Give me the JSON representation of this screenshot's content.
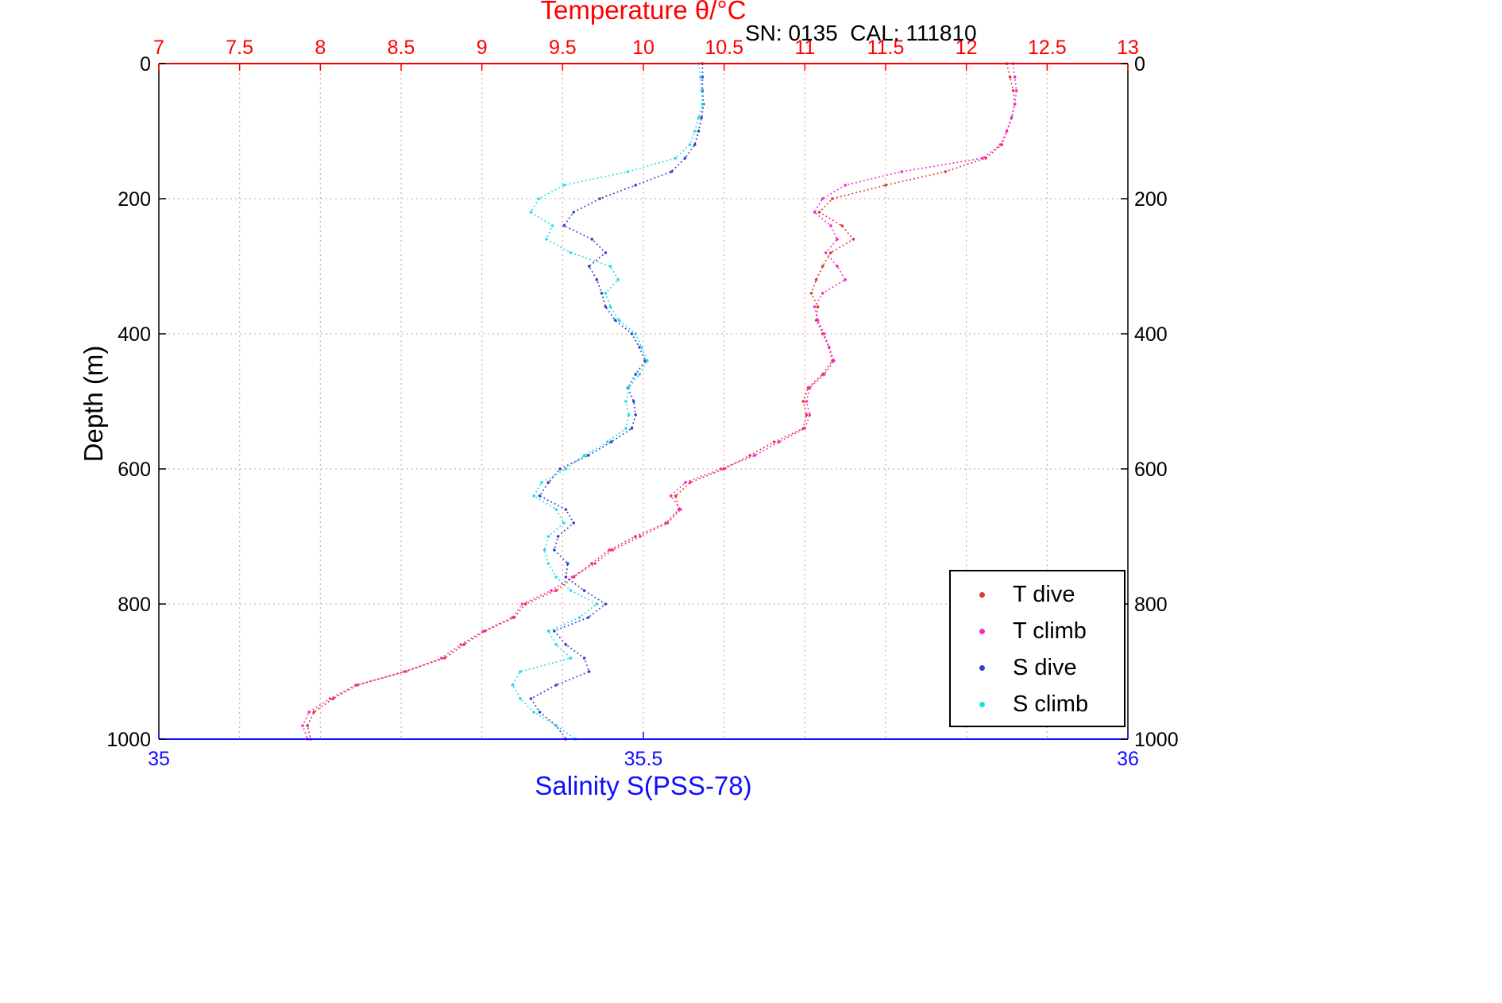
{
  "titles": {
    "temperature": "Temperature θ/°C",
    "serial_cal": "SN: 0135  CAL: 111810",
    "salinity": "Salinity S(PSS-78)",
    "depth": "Depth (m)"
  },
  "axes": {
    "temperature": {
      "min": 7,
      "max": 13,
      "ticks": [
        7,
        7.5,
        8,
        8.5,
        9,
        9.5,
        10,
        10.5,
        11,
        11.5,
        12,
        12.5,
        13
      ],
      "color": "#ff0000"
    },
    "salinity": {
      "min": 35,
      "max": 36,
      "ticks": [
        35,
        35.5,
        36
      ],
      "color": "#0f0fff"
    },
    "depth": {
      "min": 0,
      "max": 1000,
      "ticks": [
        0,
        200,
        400,
        600,
        800,
        1000
      ],
      "color": "#000000"
    }
  },
  "grid": {
    "vertical_color": "#e9a4a4",
    "horizontal_color": "#d8b0b0"
  },
  "legend": {
    "items": [
      {
        "label": "T dive",
        "color": "#e0382c"
      },
      {
        "label": "T climb",
        "color": "#f728c9"
      },
      {
        "label": "S dive",
        "color": "#3340cf"
      },
      {
        "label": "S climb",
        "color": "#1cdfe4"
      }
    ]
  },
  "chart_data": {
    "type": "scatter",
    "title": "Temperature θ/°C",
    "subtitle": "SN: 0135  CAL: 111810",
    "x_top_label": "Temperature θ/°C",
    "x_top_range": [
      7,
      13
    ],
    "x_bottom_label": "Salinity S(PSS-78)",
    "x_bottom_range": [
      35,
      36
    ],
    "ylabel": "Depth (m)",
    "y_range": [
      0,
      1000
    ],
    "y_inverted": true,
    "grid": true,
    "linestyle": "dotted",
    "marker": "point",
    "legend_position": "lower right",
    "series": [
      {
        "name": "T dive",
        "axis": "temperature",
        "color": "#e0382c",
        "points": [
          [
            0,
            12.25
          ],
          [
            20,
            12.27
          ],
          [
            40,
            12.29
          ],
          [
            60,
            12.3
          ],
          [
            80,
            12.28
          ],
          [
            100,
            12.25
          ],
          [
            120,
            12.22
          ],
          [
            140,
            12.12
          ],
          [
            160,
            11.87
          ],
          [
            180,
            11.5
          ],
          [
            200,
            11.17
          ],
          [
            220,
            11.09
          ],
          [
            240,
            11.23
          ],
          [
            260,
            11.3
          ],
          [
            280,
            11.16
          ],
          [
            300,
            11.11
          ],
          [
            320,
            11.07
          ],
          [
            340,
            11.04
          ],
          [
            360,
            11.08
          ],
          [
            380,
            11.07
          ],
          [
            400,
            11.11
          ],
          [
            420,
            11.15
          ],
          [
            440,
            11.17
          ],
          [
            460,
            11.11
          ],
          [
            480,
            11.02
          ],
          [
            500,
            10.99
          ],
          [
            520,
            11.01
          ],
          [
            540,
            10.99
          ],
          [
            560,
            10.81
          ],
          [
            580,
            10.66
          ],
          [
            600,
            10.5
          ],
          [
            620,
            10.29
          ],
          [
            640,
            10.2
          ],
          [
            660,
            10.22
          ],
          [
            680,
            10.14
          ],
          [
            700,
            9.95
          ],
          [
            720,
            9.79
          ],
          [
            740,
            9.68
          ],
          [
            760,
            9.57
          ],
          [
            780,
            9.46
          ],
          [
            800,
            9.27
          ],
          [
            820,
            9.2
          ],
          [
            840,
            9.02
          ],
          [
            860,
            8.89
          ],
          [
            880,
            8.77
          ],
          [
            900,
            8.52
          ],
          [
            920,
            8.23
          ],
          [
            940,
            8.08
          ],
          [
            960,
            7.96
          ],
          [
            980,
            7.92
          ],
          [
            1000,
            7.94
          ]
        ]
      },
      {
        "name": "T climb",
        "axis": "temperature",
        "color": "#f728c9",
        "points": [
          [
            0,
            12.29
          ],
          [
            20,
            12.3
          ],
          [
            40,
            12.31
          ],
          [
            60,
            12.3
          ],
          [
            80,
            12.28
          ],
          [
            100,
            12.25
          ],
          [
            120,
            12.21
          ],
          [
            140,
            12.1
          ],
          [
            160,
            11.6
          ],
          [
            180,
            11.25
          ],
          [
            200,
            11.11
          ],
          [
            220,
            11.06
          ],
          [
            240,
            11.16
          ],
          [
            260,
            11.2
          ],
          [
            280,
            11.13
          ],
          [
            300,
            11.2
          ],
          [
            320,
            11.25
          ],
          [
            340,
            11.11
          ],
          [
            360,
            11.06
          ],
          [
            380,
            11.08
          ],
          [
            400,
            11.12
          ],
          [
            420,
            11.15
          ],
          [
            440,
            11.18
          ],
          [
            460,
            11.12
          ],
          [
            480,
            11.03
          ],
          [
            500,
            11.01
          ],
          [
            520,
            11.03
          ],
          [
            540,
            11.0
          ],
          [
            560,
            10.84
          ],
          [
            580,
            10.69
          ],
          [
            600,
            10.48
          ],
          [
            620,
            10.26
          ],
          [
            640,
            10.17
          ],
          [
            660,
            10.23
          ],
          [
            680,
            10.15
          ],
          [
            700,
            9.98
          ],
          [
            720,
            9.81
          ],
          [
            740,
            9.7
          ],
          [
            760,
            9.56
          ],
          [
            780,
            9.43
          ],
          [
            800,
            9.25
          ],
          [
            820,
            9.19
          ],
          [
            840,
            9.01
          ],
          [
            860,
            8.87
          ],
          [
            880,
            8.75
          ],
          [
            900,
            8.53
          ],
          [
            920,
            8.22
          ],
          [
            940,
            8.06
          ],
          [
            960,
            7.93
          ],
          [
            980,
            7.89
          ],
          [
            1000,
            7.92
          ]
        ]
      },
      {
        "name": "S dive",
        "axis": "salinity",
        "color": "#3340cf",
        "points": [
          [
            0,
            35.561
          ],
          [
            20,
            35.561
          ],
          [
            40,
            35.561
          ],
          [
            60,
            35.562
          ],
          [
            80,
            35.56
          ],
          [
            100,
            35.557
          ],
          [
            120,
            35.553
          ],
          [
            140,
            35.543
          ],
          [
            160,
            35.529
          ],
          [
            180,
            35.492
          ],
          [
            200,
            35.455
          ],
          [
            220,
            35.428
          ],
          [
            240,
            35.418
          ],
          [
            260,
            35.447
          ],
          [
            280,
            35.461
          ],
          [
            300,
            35.444
          ],
          [
            320,
            35.452
          ],
          [
            340,
            35.457
          ],
          [
            360,
            35.461
          ],
          [
            380,
            35.471
          ],
          [
            400,
            35.488
          ],
          [
            420,
            35.496
          ],
          [
            440,
            35.502
          ],
          [
            460,
            35.492
          ],
          [
            480,
            35.484
          ],
          [
            500,
            35.49
          ],
          [
            520,
            35.492
          ],
          [
            540,
            35.488
          ],
          [
            560,
            35.467
          ],
          [
            580,
            35.443
          ],
          [
            600,
            35.414
          ],
          [
            620,
            35.402
          ],
          [
            640,
            35.393
          ],
          [
            660,
            35.42
          ],
          [
            680,
            35.428
          ],
          [
            700,
            35.412
          ],
          [
            720,
            35.408
          ],
          [
            740,
            35.422
          ],
          [
            760,
            35.42
          ],
          [
            780,
            35.439
          ],
          [
            800,
            35.461
          ],
          [
            820,
            35.443
          ],
          [
            840,
            35.408
          ],
          [
            860,
            35.42
          ],
          [
            880,
            35.439
          ],
          [
            900,
            35.444
          ],
          [
            920,
            35.41
          ],
          [
            940,
            35.384
          ],
          [
            960,
            35.393
          ],
          [
            980,
            35.41
          ],
          [
            1000,
            35.42
          ]
        ]
      },
      {
        "name": "S climb",
        "axis": "salinity",
        "color": "#1cdfe4",
        "points": [
          [
            0,
            35.557
          ],
          [
            20,
            35.559
          ],
          [
            40,
            35.56
          ],
          [
            60,
            35.561
          ],
          [
            80,
            35.557
          ],
          [
            100,
            35.553
          ],
          [
            120,
            35.548
          ],
          [
            140,
            35.533
          ],
          [
            160,
            35.484
          ],
          [
            180,
            35.418
          ],
          [
            200,
            35.392
          ],
          [
            220,
            35.384
          ],
          [
            240,
            35.406
          ],
          [
            260,
            35.4
          ],
          [
            280,
            35.425
          ],
          [
            300,
            35.466
          ],
          [
            320,
            35.474
          ],
          [
            340,
            35.461
          ],
          [
            360,
            35.466
          ],
          [
            380,
            35.475
          ],
          [
            400,
            35.492
          ],
          [
            420,
            35.498
          ],
          [
            440,
            35.504
          ],
          [
            460,
            35.496
          ],
          [
            480,
            35.485
          ],
          [
            500,
            35.482
          ],
          [
            520,
            35.485
          ],
          [
            540,
            35.482
          ],
          [
            560,
            35.463
          ],
          [
            580,
            35.439
          ],
          [
            600,
            35.42
          ],
          [
            620,
            35.395
          ],
          [
            640,
            35.387
          ],
          [
            660,
            35.41
          ],
          [
            680,
            35.418
          ],
          [
            700,
            35.402
          ],
          [
            720,
            35.398
          ],
          [
            740,
            35.402
          ],
          [
            760,
            35.41
          ],
          [
            780,
            35.425
          ],
          [
            800,
            35.452
          ],
          [
            820,
            35.434
          ],
          [
            840,
            35.402
          ],
          [
            860,
            35.41
          ],
          [
            880,
            35.425
          ],
          [
            900,
            35.373
          ],
          [
            920,
            35.365
          ],
          [
            940,
            35.373
          ],
          [
            960,
            35.387
          ],
          [
            980,
            35.41
          ],
          [
            1000,
            35.43
          ]
        ]
      }
    ]
  }
}
